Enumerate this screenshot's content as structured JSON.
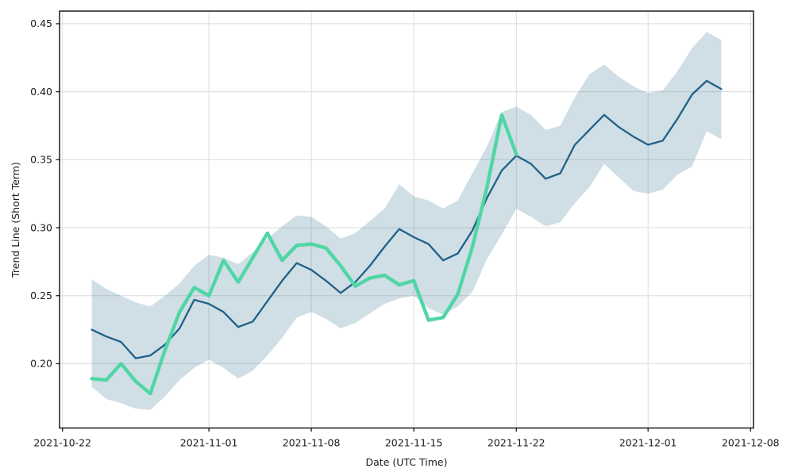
{
  "page": {
    "background_color": "#ffffff"
  },
  "chart_data": {
    "type": "line",
    "title": "",
    "xlabel": "Date (UTC Time)",
    "ylabel": "Trend Line (Short Term)",
    "grid": true,
    "legend_position": "none",
    "x_origin_date": "2021-10-22",
    "xlim_days": [
      -0.2,
      47.2
    ],
    "ylim": [
      0.1527,
      0.4593
    ],
    "x_ticks": [
      {
        "date": "2021-10-22",
        "label": "2021-10-22"
      },
      {
        "date": "2021-11-01",
        "label": "2021-11-01"
      },
      {
        "date": "2021-11-08",
        "label": "2021-11-08"
      },
      {
        "date": "2021-11-15",
        "label": "2021-11-15"
      },
      {
        "date": "2021-11-22",
        "label": "2021-11-22"
      },
      {
        "date": "2021-12-01",
        "label": "2021-12-01"
      },
      {
        "date": "2021-12-08",
        "label": "2021-12-08"
      }
    ],
    "y_ticks": [
      {
        "value": 0.2,
        "label": "0.20"
      },
      {
        "value": 0.25,
        "label": "0.25"
      },
      {
        "value": 0.3,
        "label": "0.30"
      },
      {
        "value": 0.35,
        "label": "0.35"
      },
      {
        "value": 0.4,
        "label": "0.40"
      },
      {
        "value": 0.45,
        "label": "0.45"
      }
    ],
    "series": [
      {
        "name": "forecast-trend-line",
        "color": "#1f6187",
        "line_width": 2.3,
        "dates": [
          "2021-10-24",
          "2021-10-25",
          "2021-10-26",
          "2021-10-27",
          "2021-10-28",
          "2021-10-29",
          "2021-10-30",
          "2021-10-31",
          "2021-11-01",
          "2021-11-02",
          "2021-11-03",
          "2021-11-04",
          "2021-11-05",
          "2021-11-06",
          "2021-11-07",
          "2021-11-08",
          "2021-11-09",
          "2021-11-10",
          "2021-11-11",
          "2021-11-12",
          "2021-11-13",
          "2021-11-14",
          "2021-11-15",
          "2021-11-16",
          "2021-11-17",
          "2021-11-18",
          "2021-11-19",
          "2021-11-20",
          "2021-11-21",
          "2021-11-22",
          "2021-11-23",
          "2021-11-24",
          "2021-11-25",
          "2021-11-26",
          "2021-11-27",
          "2021-11-28",
          "2021-11-29",
          "2021-11-30",
          "2021-12-01",
          "2021-12-02",
          "2021-12-03",
          "2021-12-04",
          "2021-12-05",
          "2021-12-06"
        ],
        "values": [
          0.225,
          0.22,
          0.216,
          0.204,
          0.206,
          0.214,
          0.226,
          0.247,
          0.244,
          0.238,
          0.227,
          0.231,
          0.246,
          0.261,
          0.274,
          0.269,
          0.261,
          0.252,
          0.26,
          0.272,
          0.286,
          0.299,
          0.293,
          0.288,
          0.276,
          0.281,
          0.298,
          0.322,
          0.342,
          0.353,
          0.347,
          0.336,
          0.34,
          0.361,
          0.372,
          0.383,
          0.374,
          0.367,
          0.361,
          0.364,
          0.38,
          0.398,
          0.408,
          0.402
        ]
      },
      {
        "name": "short-term-actual-line",
        "color": "#4fd6a4",
        "line_width": 4.4,
        "dates": [
          "2021-10-24",
          "2021-10-25",
          "2021-10-26",
          "2021-10-27",
          "2021-10-28",
          "2021-10-29",
          "2021-10-30",
          "2021-10-31",
          "2021-11-01",
          "2021-11-02",
          "2021-11-03",
          "2021-11-04",
          "2021-11-05",
          "2021-11-06",
          "2021-11-07",
          "2021-11-08",
          "2021-11-09",
          "2021-11-10",
          "2021-11-11",
          "2021-11-12",
          "2021-11-13",
          "2021-11-14",
          "2021-11-15",
          "2021-11-16",
          "2021-11-17",
          "2021-11-18",
          "2021-11-19",
          "2021-11-20",
          "2021-11-21",
          "2021-11-22"
        ],
        "values": [
          0.189,
          0.188,
          0.2,
          0.187,
          0.178,
          0.21,
          0.238,
          0.256,
          0.25,
          0.276,
          0.26,
          0.278,
          0.296,
          0.276,
          0.287,
          0.288,
          0.285,
          0.272,
          0.257,
          0.263,
          0.265,
          0.258,
          0.261,
          0.232,
          0.234,
          0.251,
          0.286,
          0.33,
          0.383,
          0.354
        ]
      }
    ],
    "confidence_band": {
      "name": "confidence-band",
      "attached_to": "forecast-trend-line",
      "fill_color": "#1f6187",
      "fill_opacity": 0.21,
      "dates": [
        "2021-10-24",
        "2021-10-25",
        "2021-10-26",
        "2021-10-27",
        "2021-10-28",
        "2021-10-29",
        "2021-10-30",
        "2021-10-31",
        "2021-11-01",
        "2021-11-02",
        "2021-11-03",
        "2021-11-04",
        "2021-11-05",
        "2021-11-06",
        "2021-11-07",
        "2021-11-08",
        "2021-11-09",
        "2021-11-10",
        "2021-11-11",
        "2021-11-12",
        "2021-11-13",
        "2021-11-14",
        "2021-11-15",
        "2021-11-16",
        "2021-11-17",
        "2021-11-18",
        "2021-11-19",
        "2021-11-20",
        "2021-11-21",
        "2021-11-22",
        "2021-11-23",
        "2021-11-24",
        "2021-11-25",
        "2021-11-26",
        "2021-11-27",
        "2021-11-28",
        "2021-11-29",
        "2021-11-30",
        "2021-12-01",
        "2021-12-02",
        "2021-12-03",
        "2021-12-04",
        "2021-12-05",
        "2021-12-06"
      ],
      "upper": [
        0.262,
        0.255,
        0.25,
        0.245,
        0.242,
        0.25,
        0.259,
        0.272,
        0.28,
        0.278,
        0.273,
        0.282,
        0.292,
        0.301,
        0.309,
        0.308,
        0.301,
        0.292,
        0.296,
        0.305,
        0.314,
        0.332,
        0.323,
        0.32,
        0.314,
        0.32,
        0.34,
        0.36,
        0.385,
        0.389,
        0.383,
        0.372,
        0.375,
        0.396,
        0.413,
        0.42,
        0.411,
        0.404,
        0.399,
        0.401,
        0.415,
        0.432,
        0.444,
        0.438
      ],
      "lower": [
        0.183,
        0.174,
        0.171,
        0.167,
        0.166,
        0.176,
        0.188,
        0.197,
        0.203,
        0.197,
        0.189,
        0.195,
        0.206,
        0.219,
        0.234,
        0.238,
        0.233,
        0.226,
        0.23,
        0.237,
        0.244,
        0.248,
        0.25,
        0.241,
        0.236,
        0.242,
        0.253,
        0.277,
        0.295,
        0.314,
        0.308,
        0.301,
        0.304,
        0.318,
        0.33,
        0.347,
        0.337,
        0.327,
        0.325,
        0.328,
        0.339,
        0.345,
        0.371,
        0.365
      ]
    },
    "style": {
      "grid_color": "#dcdcdc",
      "spine_color": "#1a1a1a",
      "text_color": "#1a1a1a",
      "background": "#ffffff"
    }
  }
}
